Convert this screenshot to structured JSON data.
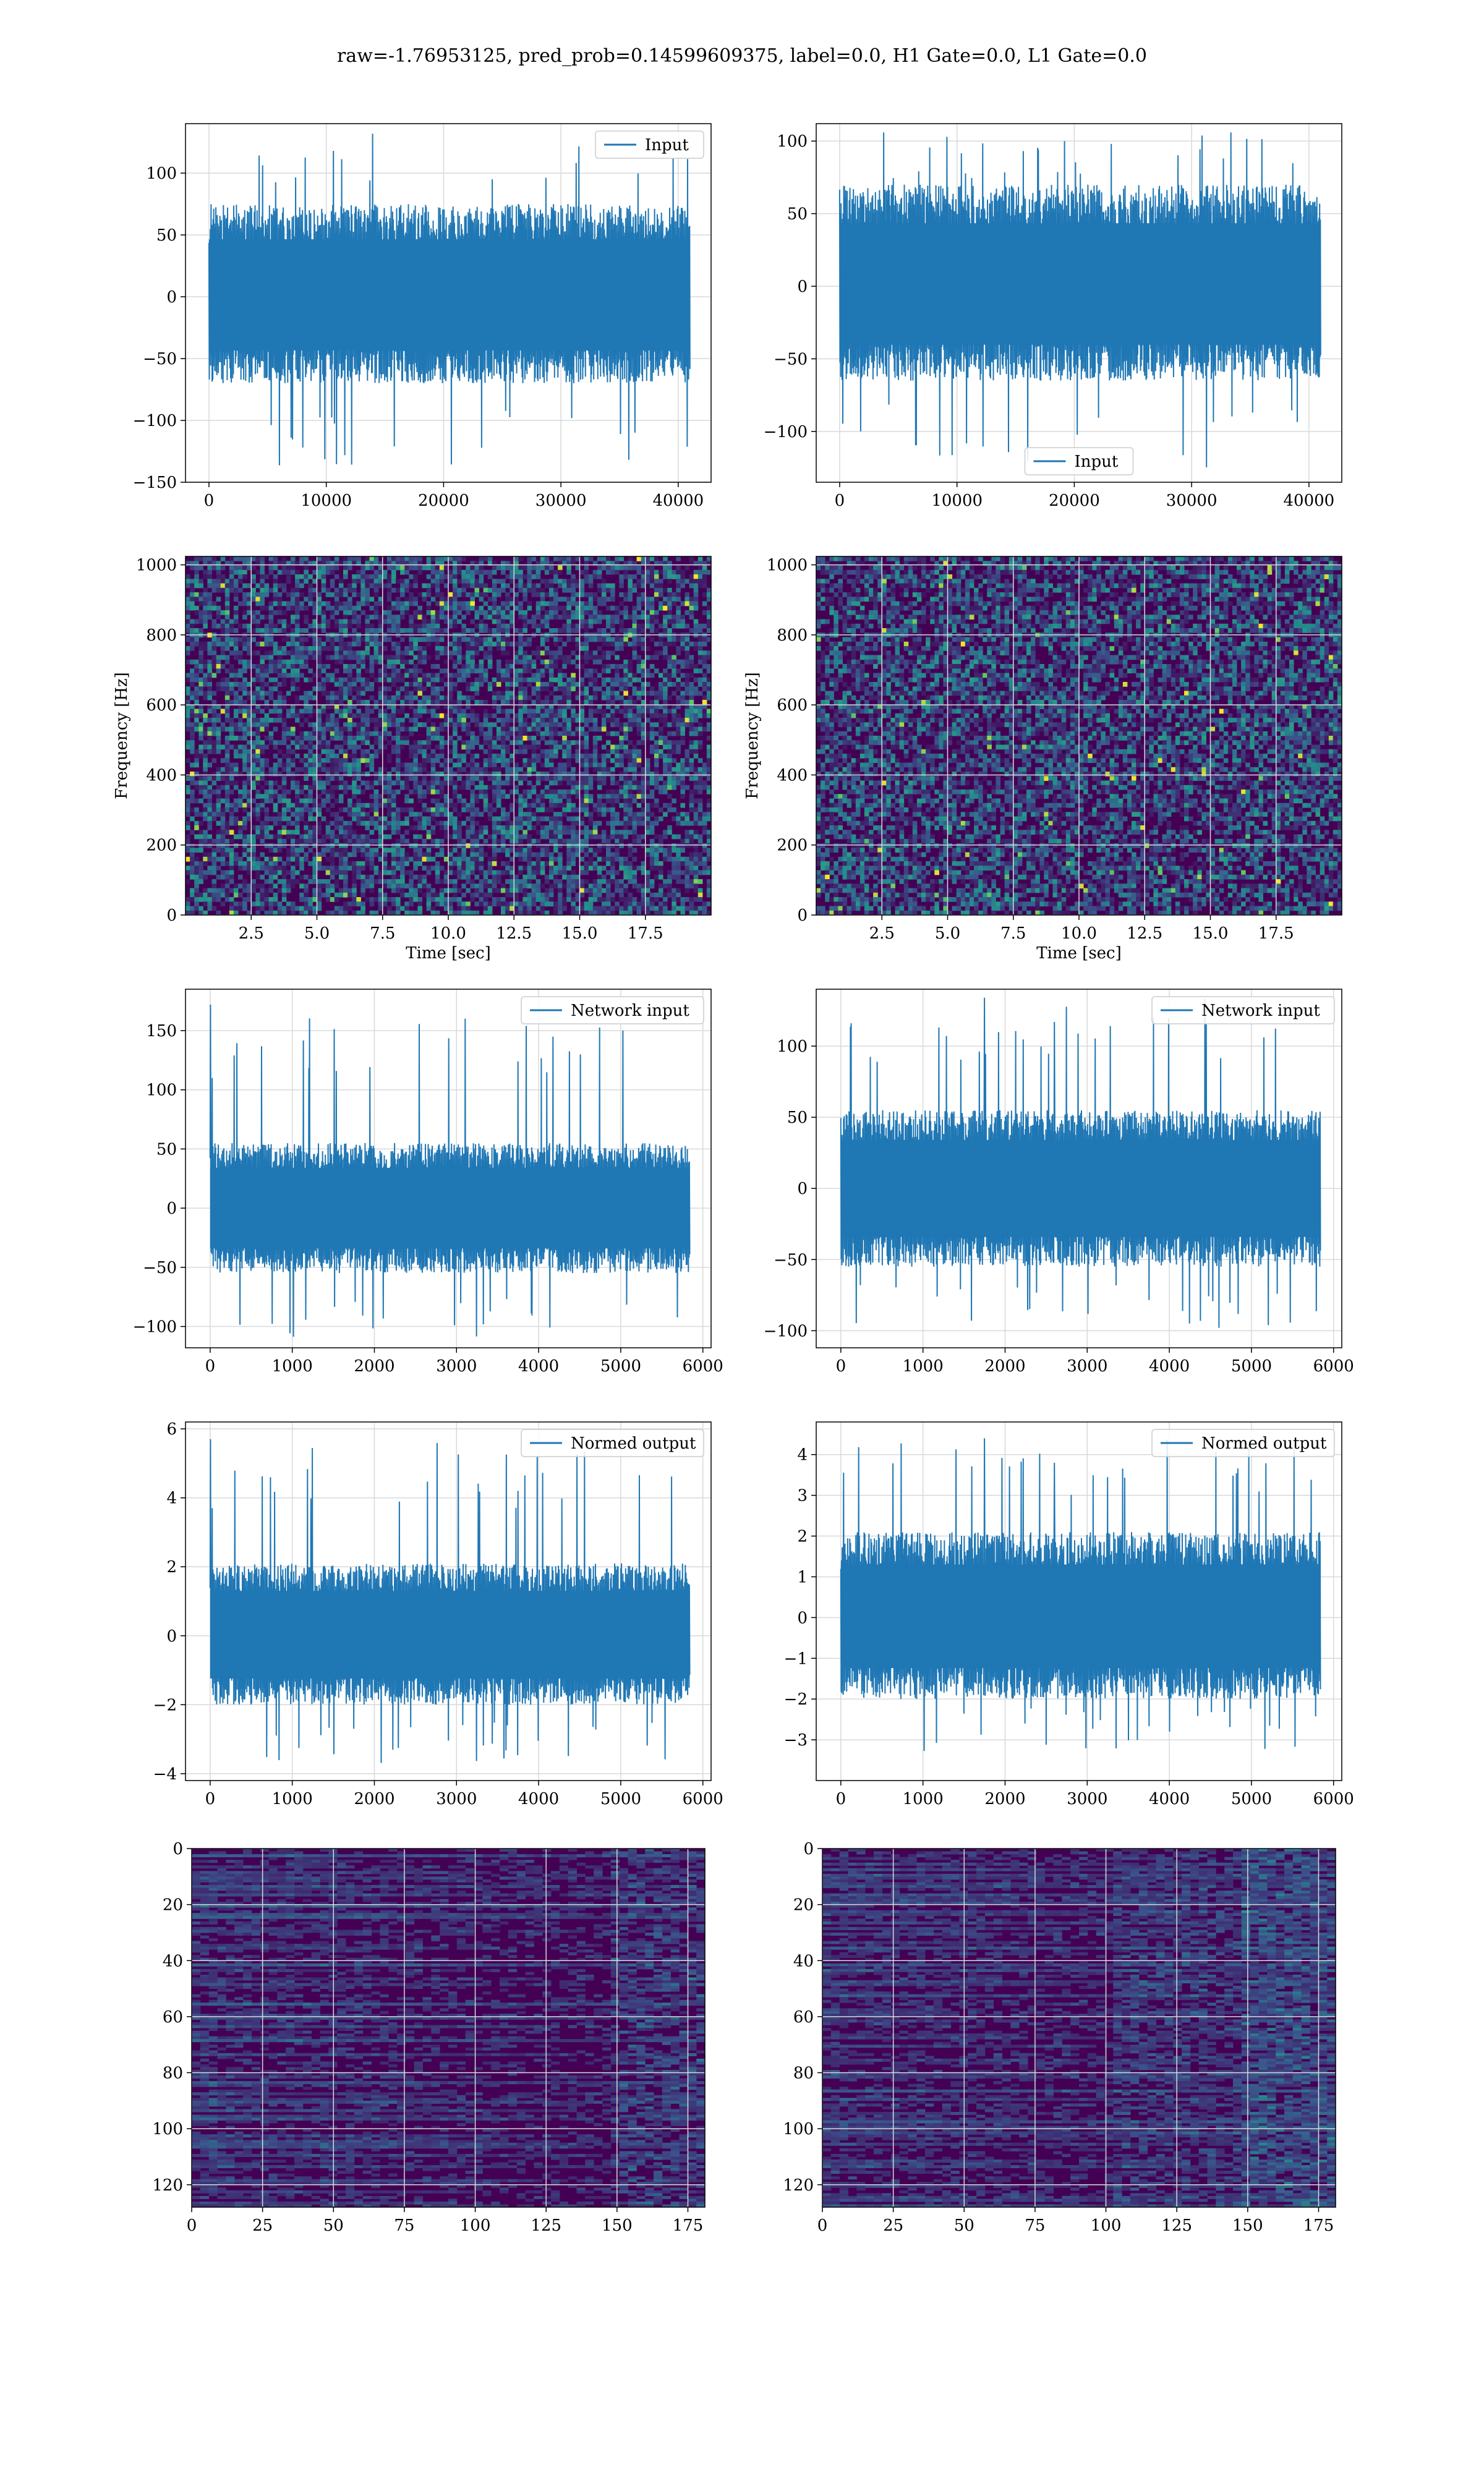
{
  "figure": {
    "title": "raw=-1.76953125, pred_prob=0.14599609375, label=0.0, H1 Gate=0.0, L1 Gate=0.0"
  },
  "colors": {
    "series": "#1f77b4",
    "grid": "#d9d9d9",
    "spine": "#000000",
    "viridis": [
      "#440154",
      "#3b528b",
      "#21918c",
      "#5ec962",
      "#fde725"
    ]
  },
  "chart_data": [
    {
      "type": "line",
      "id": "input_left",
      "legend": "Input",
      "legend_loc": "upper right",
      "xlim": [
        -2000,
        42800
      ],
      "ylim": [
        -150,
        140
      ],
      "xticks": [
        0,
        10000,
        20000,
        30000,
        40000
      ],
      "yticks": [
        -150,
        -100,
        -50,
        0,
        50,
        100
      ],
      "x_range": [
        0,
        41000
      ],
      "envelope": {
        "pos_typ": 75,
        "neg_typ": -70,
        "max": 132,
        "min": -137
      },
      "grid": true
    },
    {
      "type": "line",
      "id": "input_right",
      "legend": "Input",
      "legend_loc": "lower center",
      "xlim": [
        -2000,
        42800
      ],
      "ylim": [
        -135,
        112
      ],
      "xticks": [
        0,
        10000,
        20000,
        30000,
        40000
      ],
      "yticks": [
        -100,
        -50,
        0,
        50,
        100
      ],
      "x_range": [
        0,
        41000
      ],
      "envelope": {
        "pos_typ": 70,
        "neg_typ": -65,
        "max": 107,
        "min": -125
      },
      "grid": true
    },
    {
      "type": "heatmap",
      "id": "spectrogram_left",
      "colormap": "viridis",
      "xlabel": "Time [sec]",
      "ylabel": "Frequency [Hz]",
      "xlim": [
        0,
        20
      ],
      "ylim": [
        0,
        1024
      ],
      "xticks": [
        2.5,
        5.0,
        7.5,
        10.0,
        12.5,
        15.0,
        17.5
      ],
      "xtick_labels": [
        "2.5",
        "5.0",
        "7.5",
        "10.0",
        "12.5",
        "15.0",
        "17.5"
      ],
      "yticks": [
        0,
        200,
        400,
        600,
        800,
        1000
      ],
      "grid": true
    },
    {
      "type": "heatmap",
      "id": "spectrogram_right",
      "colormap": "viridis",
      "xlabel": "Time [sec]",
      "ylabel": "Frequency [Hz]",
      "xlim": [
        0,
        20
      ],
      "ylim": [
        0,
        1024
      ],
      "xticks": [
        2.5,
        5.0,
        7.5,
        10.0,
        12.5,
        15.0,
        17.5
      ],
      "xtick_labels": [
        "2.5",
        "5.0",
        "7.5",
        "10.0",
        "12.5",
        "15.0",
        "17.5"
      ],
      "yticks": [
        0,
        200,
        400,
        600,
        800,
        1000
      ],
      "grid": true
    },
    {
      "type": "line",
      "id": "network_input_left",
      "legend": "Network input",
      "legend_loc": "upper right",
      "xlim": [
        -300,
        6100
      ],
      "ylim": [
        -118,
        185
      ],
      "xticks": [
        0,
        1000,
        2000,
        3000,
        4000,
        5000,
        6000
      ],
      "yticks": [
        -100,
        -50,
        0,
        50,
        100,
        150
      ],
      "x_range": [
        0,
        5840
      ],
      "envelope": {
        "pos_typ": 55,
        "neg_typ": -55,
        "max": 172,
        "min": -110
      },
      "spikes": [
        {
          "x": 5,
          "y": 172
        },
        {
          "x": 25,
          "y": 110
        },
        {
          "x": 3750,
          "y": 124
        }
      ],
      "grid": true
    },
    {
      "type": "line",
      "id": "network_input_right",
      "legend": "Network input",
      "legend_loc": "upper right",
      "xlim": [
        -300,
        6100
      ],
      "ylim": [
        -112,
        140
      ],
      "xticks": [
        0,
        1000,
        2000,
        3000,
        4000,
        5000,
        6000
      ],
      "yticks": [
        -100,
        -50,
        0,
        50,
        100
      ],
      "x_range": [
        0,
        5840
      ],
      "envelope": {
        "pos_typ": 55,
        "neg_typ": -55,
        "max": 134,
        "min": -101
      },
      "spikes": [
        {
          "x": 1750,
          "y": 134
        },
        {
          "x": 2600,
          "y": 117
        }
      ],
      "grid": true
    },
    {
      "type": "line",
      "id": "normed_output_left",
      "legend": "Normed output",
      "legend_loc": "upper right",
      "xlim": [
        -300,
        6100
      ],
      "ylim": [
        -4.2,
        6.2
      ],
      "xticks": [
        0,
        1000,
        2000,
        3000,
        4000,
        5000,
        6000
      ],
      "yticks": [
        -4,
        -2,
        0,
        2,
        4,
        6
      ],
      "x_range": [
        0,
        5840
      ],
      "envelope": {
        "pos_typ": 2.1,
        "neg_typ": -2.0,
        "max": 5.7,
        "min": -3.7
      },
      "spikes": [
        {
          "x": 5,
          "y": 5.7
        },
        {
          "x": 25,
          "y": 3.7
        },
        {
          "x": 3750,
          "y": 4.2
        }
      ],
      "grid": true
    },
    {
      "type": "line",
      "id": "normed_output_right",
      "legend": "Normed output",
      "legend_loc": "upper right",
      "xlim": [
        -300,
        6100
      ],
      "ylim": [
        -4.0,
        4.8
      ],
      "xticks": [
        0,
        1000,
        2000,
        3000,
        4000,
        5000,
        6000
      ],
      "yticks": [
        -3,
        -2,
        -1,
        0,
        1,
        2,
        3,
        4
      ],
      "x_range": [
        0,
        5840
      ],
      "envelope": {
        "pos_typ": 2.1,
        "neg_typ": -2.0,
        "max": 4.4,
        "min": -3.3
      },
      "spikes": [
        {
          "x": 1750,
          "y": 4.4
        },
        {
          "x": 2600,
          "y": 3.8
        }
      ],
      "grid": true
    },
    {
      "type": "heatmap",
      "id": "features_left",
      "colormap": "viridis",
      "xlim": [
        0,
        181
      ],
      "ylim": [
        128,
        0
      ],
      "xticks": [
        0,
        25,
        50,
        75,
        100,
        125,
        150,
        175
      ],
      "yticks": [
        0,
        20,
        40,
        60,
        80,
        100,
        120
      ],
      "grid": true
    },
    {
      "type": "heatmap",
      "id": "features_right",
      "colormap": "viridis",
      "xlim": [
        0,
        181
      ],
      "ylim": [
        128,
        0
      ],
      "xticks": [
        0,
        25,
        50,
        75,
        100,
        125,
        150,
        175
      ],
      "yticks": [
        0,
        20,
        40,
        60,
        80,
        100,
        120
      ],
      "grid": true
    }
  ]
}
